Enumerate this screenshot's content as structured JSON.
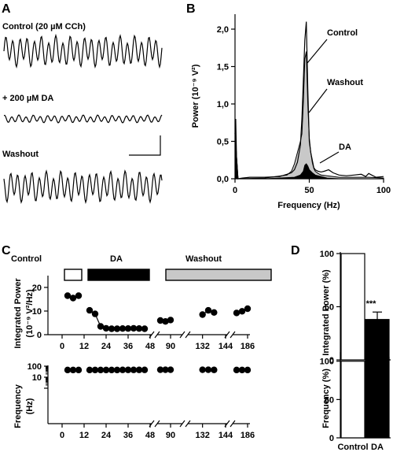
{
  "panels": {
    "A": {
      "letter": "A",
      "traces": [
        {
          "label": "Control (20 µM CCh)",
          "amplitude": 1.0
        },
        {
          "label": "+ 200 µM DA",
          "amplitude": 0.25
        },
        {
          "label": "Washout",
          "amplitude": 1.0
        }
      ]
    },
    "B": {
      "letter": "B"
    },
    "C": {
      "letter": "C"
    },
    "D": {
      "letter": "D"
    }
  },
  "chart_data": [
    {
      "type": "area",
      "id": "B",
      "xlabel": "Frequency (Hz)",
      "ylabel": "Power (10⁻⁹ V²)",
      "xlim": [
        0,
        100
      ],
      "ylim": [
        0,
        2.2
      ],
      "xticks": [
        "0",
        "50",
        "100"
      ],
      "yticks": [
        "0,0",
        "0,5",
        "1,0",
        "1,5",
        "2,0"
      ],
      "series": [
        {
          "name": "Control",
          "style": "line",
          "x": [
            0,
            0.5,
            1,
            2,
            5,
            10,
            20,
            30,
            35,
            38,
            40,
            42,
            44,
            45,
            46,
            47,
            48,
            49,
            50,
            51,
            52,
            53,
            54,
            56,
            58,
            60,
            63,
            66,
            70,
            75,
            80,
            85,
            88,
            90,
            92,
            95,
            100
          ],
          "y": [
            0.6,
            0.8,
            0.3,
            0.0,
            0.01,
            0.02,
            0.02,
            0.03,
            0.06,
            0.08,
            0.12,
            0.22,
            0.45,
            0.8,
            1.3,
            1.85,
            2.1,
            1.2,
            0.5,
            0.35,
            0.25,
            0.15,
            0.12,
            0.1,
            0.09,
            0.1,
            0.12,
            0.08,
            0.05,
            0.04,
            0.05,
            0.06,
            0.03,
            0.07,
            0.05,
            0.02,
            0.03
          ]
        },
        {
          "name": "Washout",
          "style": "filled-grey",
          "x": [
            0,
            1,
            2,
            20,
            35,
            38,
            40,
            42,
            44,
            45,
            46,
            47,
            48,
            49,
            50,
            51,
            52,
            53,
            54,
            56,
            58,
            62,
            70,
            80,
            90,
            100
          ],
          "y": [
            0.7,
            0.3,
            0.0,
            0.01,
            0.05,
            0.1,
            0.2,
            0.35,
            0.5,
            0.6,
            1.0,
            1.6,
            1.7,
            1.0,
            0.55,
            0.35,
            0.22,
            0.14,
            0.1,
            0.07,
            0.05,
            0.04,
            0.02,
            0.02,
            0.02,
            0.01
          ]
        },
        {
          "name": "DA",
          "style": "filled-black",
          "x": [
            0,
            1,
            2,
            20,
            40,
            44,
            46,
            47,
            48,
            49,
            50,
            51,
            52,
            54,
            58,
            62,
            70,
            100
          ],
          "y": [
            0.7,
            0.3,
            0.0,
            0.0,
            0.02,
            0.05,
            0.1,
            0.18,
            0.2,
            0.17,
            0.12,
            0.1,
            0.08,
            0.05,
            0.03,
            0.01,
            0.0,
            0.0
          ]
        }
      ]
    },
    {
      "type": "scatter",
      "id": "C-top",
      "ylabel_lines": [
        "Integrated Power",
        "(10⁻⁹ V²/Hz)"
      ],
      "ylim": [
        0,
        25
      ],
      "yticks": [
        "0",
        "10",
        "20"
      ],
      "xticks": [
        "0",
        "12",
        "24",
        "36",
        "48",
        "90",
        "132",
        "144",
        "186"
      ],
      "bars": [
        {
          "name": "Control",
          "fill": "white"
        },
        {
          "name": "DA",
          "fill": "black"
        },
        {
          "name": "Washout",
          "fill": "#c8c8c8"
        }
      ],
      "segments": [
        {
          "name": "Control",
          "x": [
            3,
            6,
            9
          ],
          "y": [
            16.5,
            15.5,
            16.5
          ]
        },
        {
          "name": "DA",
          "x": [
            15,
            18,
            21,
            24,
            27,
            30,
            33,
            36,
            39,
            42,
            45
          ],
          "y": [
            10.3,
            8.8,
            3.5,
            2.7,
            2.5,
            2.5,
            2.6,
            2.6,
            2.7,
            2.6,
            2.5
          ]
        },
        {
          "name": "Washout",
          "x": [
            84,
            87,
            90
          ],
          "y": [
            6.0,
            5.6,
            6.2
          ]
        },
        {
          "name": "Washout",
          "x": [
            132,
            135,
            138
          ],
          "y": [
            8.5,
            10.3,
            9.4
          ]
        },
        {
          "name": "Washout",
          "x": [
            180,
            183,
            186
          ],
          "y": [
            9.2,
            9.9,
            11.0
          ]
        }
      ]
    },
    {
      "type": "scatter",
      "id": "C-bottom",
      "ylabel_lines": [
        "Frequency",
        "(Hz)"
      ],
      "yscale": "log",
      "ylim": [
        1,
        100
      ],
      "yticks": [
        "1",
        "10",
        "100"
      ],
      "xticks": [
        "0",
        "12",
        "24",
        "36",
        "48",
        "90",
        "132",
        "144",
        "186"
      ],
      "segments": [
        {
          "name": "Control",
          "x": [
            3,
            6,
            9
          ],
          "y": [
            45,
            45,
            45
          ]
        },
        {
          "name": "DA",
          "x": [
            15,
            18,
            21,
            24,
            27,
            30,
            33,
            36,
            39,
            42,
            45
          ],
          "y": [
            45,
            45,
            45,
            45,
            45,
            45,
            46,
            46,
            46,
            46,
            46
          ]
        },
        {
          "name": "Washout",
          "x": [
            84,
            87,
            90
          ],
          "y": [
            47,
            47,
            47
          ]
        },
        {
          "name": "Washout",
          "x": [
            132,
            135,
            138
          ],
          "y": [
            47,
            47,
            46
          ]
        },
        {
          "name": "Washout",
          "x": [
            180,
            183,
            186
          ],
          "y": [
            45,
            45,
            45
          ]
        }
      ]
    },
    {
      "type": "bar",
      "id": "D-top",
      "categories": [
        "Control",
        "DA"
      ],
      "values": [
        100,
        38
      ],
      "errors": [
        0,
        7
      ],
      "ylabel": "Integrated Power (%)",
      "ylim": [
        0,
        100
      ],
      "yticks": [
        "0",
        "50",
        "100"
      ],
      "annotation": "***"
    },
    {
      "type": "bar",
      "id": "D-bottom",
      "categories": [
        "Control",
        "DA"
      ],
      "values": [
        100,
        105
      ],
      "errors": [
        0,
        3
      ],
      "ylabel": "Frequency (%)",
      "ylim": [
        0,
        110
      ],
      "yticks": [
        "0",
        "50",
        "100"
      ]
    }
  ]
}
